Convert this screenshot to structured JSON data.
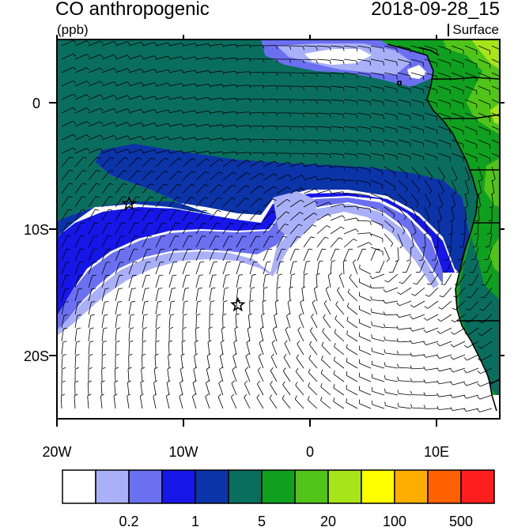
{
  "header": {
    "title": "CO anthropogenic",
    "units": "(ppb)",
    "timestamp": "2018-09-28_15",
    "level": "Surface"
  },
  "map": {
    "extent": {
      "lon": [
        -20,
        15
      ],
      "lat": [
        -25,
        5
      ]
    },
    "x_ticks": [
      {
        "lon": -20,
        "label": "20W"
      },
      {
        "lon": -10,
        "label": "10W"
      },
      {
        "lon": 0,
        "label": "0"
      },
      {
        "lon": 10,
        "label": "10E"
      }
    ],
    "y_ticks": [
      {
        "lat": 0,
        "label": "0"
      },
      {
        "lat": -10,
        "label": "10S"
      },
      {
        "lat": -20,
        "label": "20S"
      }
    ],
    "markers": [
      {
        "type": "star",
        "lon": -14.3,
        "lat": -8.0
      },
      {
        "type": "star",
        "lon": -5.7,
        "lat": -16.0
      }
    ],
    "colors": {
      "ocean_background": "#ffffff",
      "contour_bands": [
        "#ffffff",
        "#aab0f8",
        "#6a70f0",
        "#1616e8",
        "#0a34a8",
        "#0a6e5e",
        "#10a020",
        "#50c418",
        "#a8e41a",
        "#ffff00",
        "#ffae00",
        "#ff6000",
        "#ff1e1e"
      ]
    }
  },
  "colorbar": {
    "colors": [
      "#ffffff",
      "#aab0f8",
      "#6a70f0",
      "#1616e8",
      "#0a34a8",
      "#0a6e5e",
      "#10a020",
      "#50c418",
      "#a8e41a",
      "#ffff00",
      "#ffae00",
      "#ff6000",
      "#ff1e1e"
    ],
    "labels": [
      "0.2",
      "1",
      "5",
      "20",
      "100",
      "500"
    ]
  }
}
